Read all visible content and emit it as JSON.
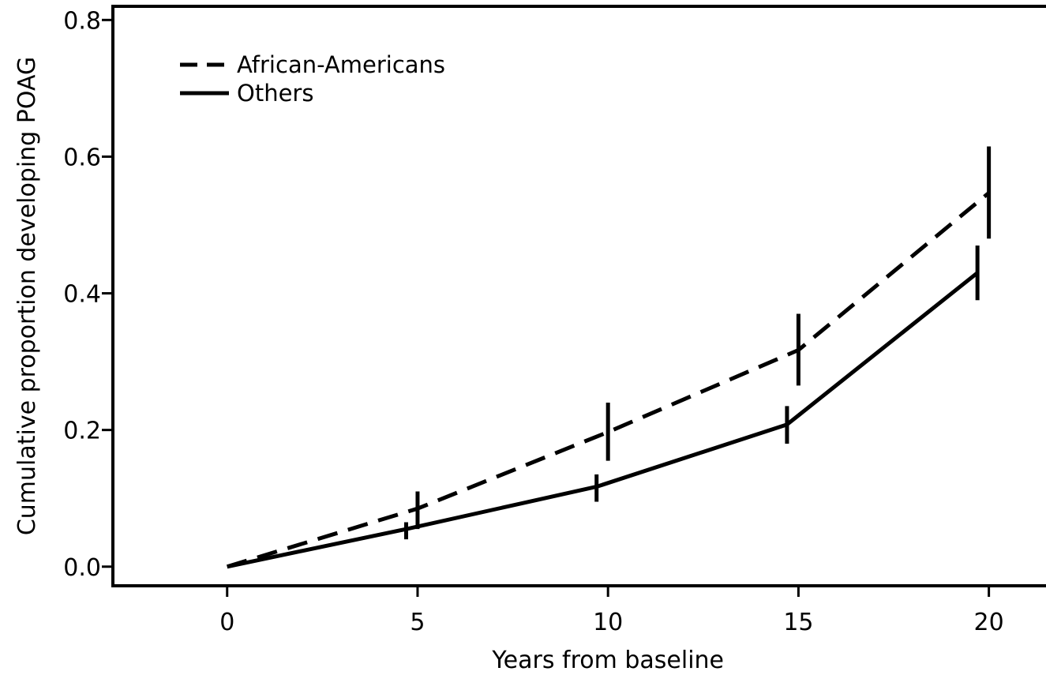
{
  "chart_data": {
    "type": "line",
    "title": "",
    "xlabel": "Years from baseline",
    "ylabel": "Cumulative proportion developing POAG",
    "xlim": [
      -3,
      21.5
    ],
    "ylim": [
      -0.028,
      0.82
    ],
    "x_ticks": [
      0,
      5,
      10,
      15,
      20
    ],
    "x_tick_labels": [
      "0",
      "5",
      "10",
      "15",
      "20"
    ],
    "y_ticks": [
      0.0,
      0.2,
      0.4,
      0.6,
      0.8
    ],
    "y_tick_labels": [
      "0.0",
      "0.2",
      "0.4",
      "0.6",
      "0.8"
    ],
    "grid": false,
    "legend_position": "top-left",
    "series": [
      {
        "name": "African-Americans",
        "line_style": "dashed",
        "color": "#000000",
        "x": [
          0,
          5,
          10,
          15,
          20
        ],
        "y": [
          0.0,
          0.085,
          0.197,
          0.317,
          0.547
        ],
        "ci_lower": [
          0.0,
          0.055,
          0.155,
          0.265,
          0.48
        ],
        "ci_upper": [
          0.0,
          0.11,
          0.24,
          0.37,
          0.615
        ]
      },
      {
        "name": "Others",
        "line_style": "solid",
        "color": "#000000",
        "x": [
          0,
          4.7,
          9.7,
          14.7,
          19.7
        ],
        "y": [
          0.0,
          0.055,
          0.117,
          0.208,
          0.43
        ],
        "ci_lower": [
          0.0,
          0.04,
          0.095,
          0.18,
          0.39
        ],
        "ci_upper": [
          0.0,
          0.065,
          0.135,
          0.235,
          0.47
        ]
      }
    ]
  }
}
